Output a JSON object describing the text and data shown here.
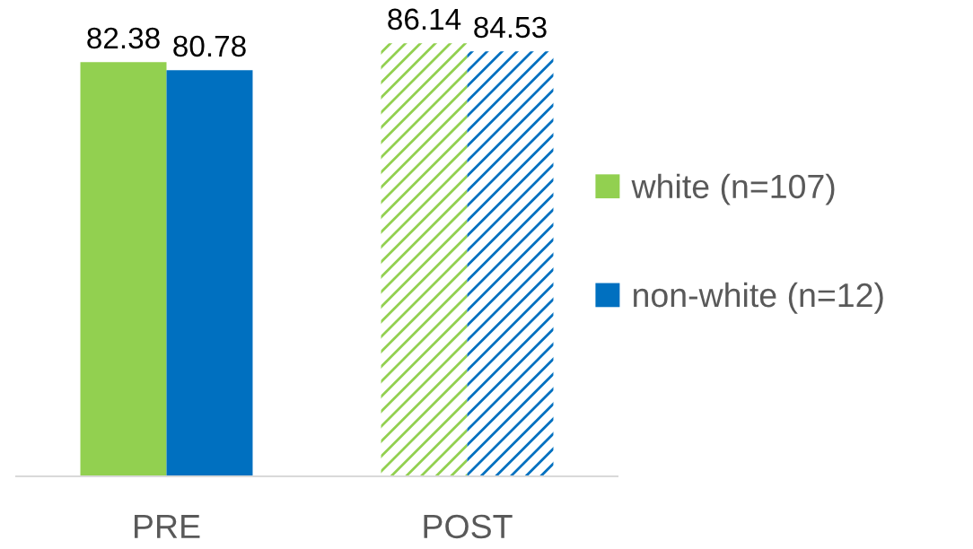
{
  "chart_data": {
    "type": "bar",
    "categories": [
      "PRE",
      "POST"
    ],
    "series": [
      {
        "name": "white (n=107)",
        "color": "#92d050",
        "values": [
          82.38,
          86.14
        ]
      },
      {
        "name": "non-white (n=12)",
        "color": "#0070c0",
        "values": [
          80.78,
          84.53
        ]
      }
    ],
    "tick_labels": "x",
    "data_labels": true,
    "legend": "right"
  }
}
